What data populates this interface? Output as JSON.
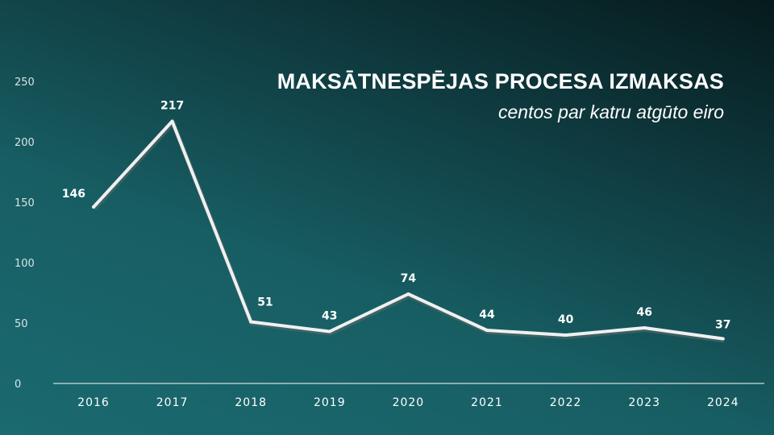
{
  "chart_data": {
    "type": "line",
    "title": "MAKSĀTNESPĒJAS PROCESA IZMAKSAS",
    "subtitle": "centos par katru atgūto eiro",
    "categories": [
      "2016",
      "2017",
      "2018",
      "2019",
      "2020",
      "2021",
      "2022",
      "2023",
      "2024"
    ],
    "values": [
      146,
      217,
      51,
      43,
      74,
      44,
      40,
      46,
      37
    ],
    "data_labels": [
      "146",
      "217",
      "51",
      "43",
      "74",
      "44",
      "40",
      "46",
      "37"
    ],
    "ylim": [
      0,
      250
    ],
    "y_ticks": [
      0,
      50,
      100,
      150,
      200,
      250
    ],
    "grid": false,
    "legend": "none",
    "colors": {
      "line": "#f0f0f0",
      "axis": "#cfdcdd",
      "drop_line": "#d8e3e3"
    }
  }
}
